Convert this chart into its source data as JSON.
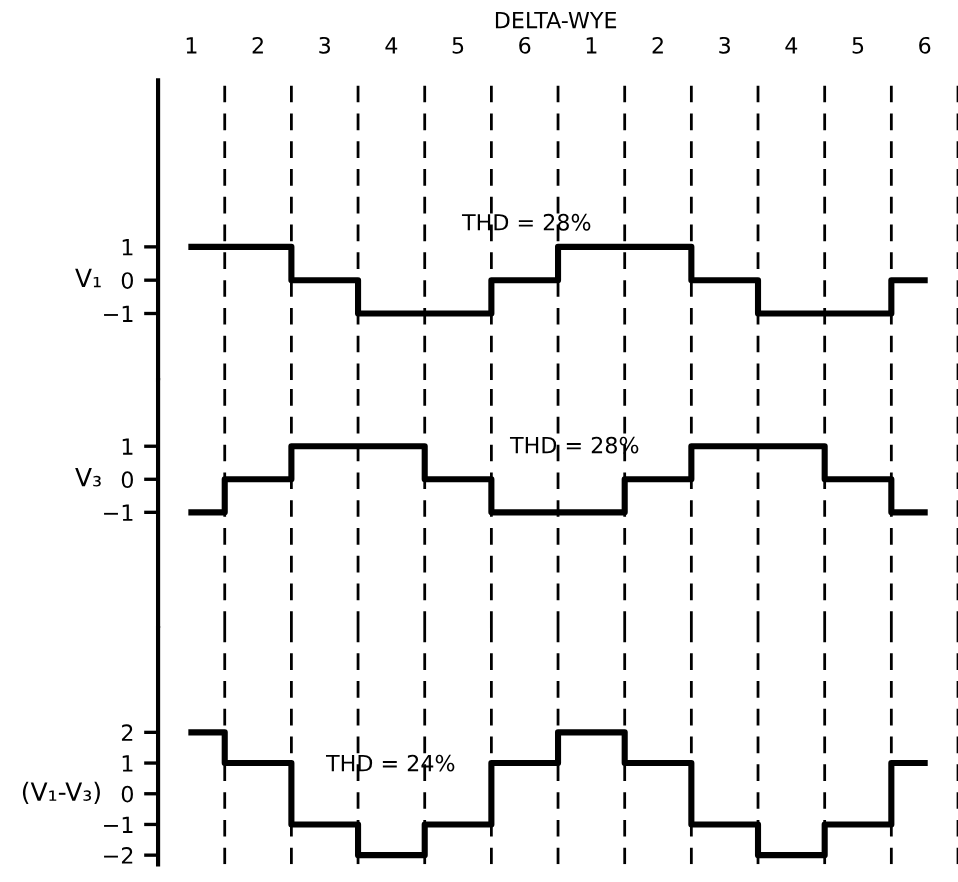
{
  "chart_data": [
    {
      "type": "step",
      "title": "DELTA-WYE",
      "ylabel": "V₁",
      "categories": [
        "1",
        "2",
        "3",
        "4",
        "5",
        "6",
        "1",
        "2",
        "3",
        "4",
        "5",
        "6"
      ],
      "values": [
        1,
        1,
        0,
        -1,
        -1,
        0,
        1,
        1,
        0,
        -1,
        -1,
        0
      ],
      "color": "#000000",
      "ylim": [
        -3,
        6
      ],
      "yticks": [
        -1,
        0,
        1
      ],
      "grid": "x",
      "annotations": [
        "THD = 28%"
      ]
    },
    {
      "type": "step",
      "ylabel": "V₃",
      "categories": [
        "1",
        "2",
        "3",
        "4",
        "5",
        "6",
        "1",
        "2",
        "3",
        "4",
        "5",
        "6"
      ],
      "values": [
        -1,
        0,
        1,
        1,
        0,
        -1,
        -1,
        0,
        1,
        1,
        0,
        -1
      ],
      "color": "#000000",
      "ylim": [
        -4.5,
        3
      ],
      "yticks": [
        -1,
        0,
        1
      ],
      "grid": "x",
      "tick_labels": "y",
      "annotations": [
        "THD = 28%"
      ]
    },
    {
      "type": "step",
      "ylabel": "(V₁-V₃)",
      "categories": [
        "1",
        "2",
        "3",
        "4",
        "5",
        "6",
        "1",
        "2",
        "3",
        "4",
        "5",
        "6"
      ],
      "values": [
        2,
        1,
        -1,
        -2,
        -1,
        1,
        2,
        1,
        -1,
        -2,
        -1,
        1
      ],
      "color": "#000000",
      "ylim": [
        -2.3,
        5.4
      ],
      "yticks": [
        -2,
        -1,
        0,
        1,
        2
      ],
      "grid": "x",
      "tick_labels": "y",
      "annotations": [
        "THD = 24%"
      ]
    }
  ]
}
